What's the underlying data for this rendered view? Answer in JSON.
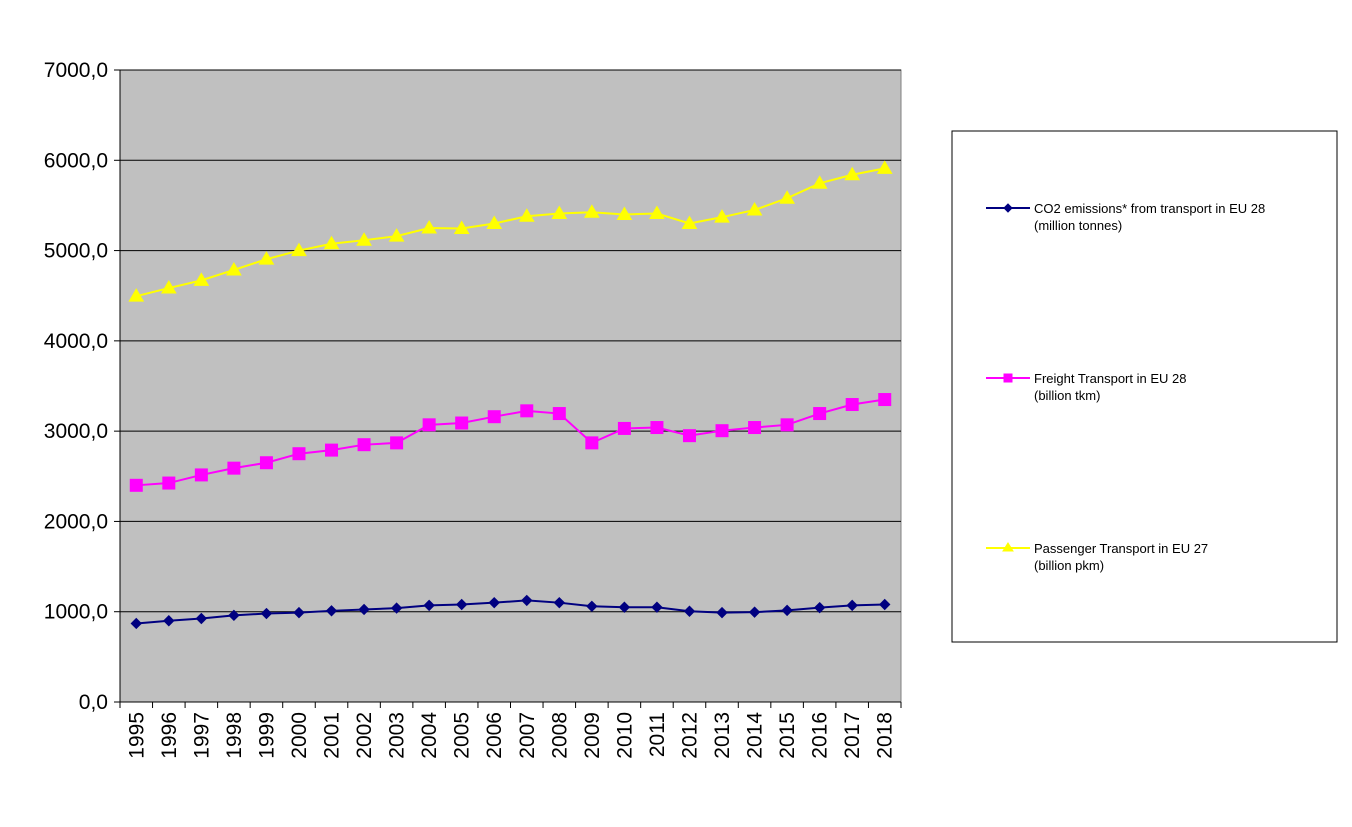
{
  "chart_data": {
    "type": "line",
    "title": "",
    "xlabel": "",
    "ylabel": "",
    "ylim": [
      0,
      7000
    ],
    "yticks": [
      "0,0",
      "1000,0",
      "2000,0",
      "3000,0",
      "4000,0",
      "5000,0",
      "6000,0",
      "7000,0"
    ],
    "categories": [
      "1995",
      "1996",
      "1997",
      "1998",
      "1999",
      "2000",
      "2001",
      "2002",
      "2003",
      "2004",
      "2005",
      "2006",
      "2007",
      "2008",
      "2009",
      "2010",
      "2011",
      "2012",
      "2013",
      "2014",
      "2015",
      "2016",
      "2017",
      "2018"
    ],
    "plot_background": "#C0C0C0",
    "grid": true,
    "legend_position": "right",
    "series": [
      {
        "name": "CO2 emissions* from transport in EU 28",
        "name_line2": "(million tonnes)",
        "color": "#000080",
        "marker": "diamond",
        "values": [
          870,
          900,
          925,
          960,
          980,
          990,
          1010,
          1025,
          1040,
          1070,
          1080,
          1100,
          1125,
          1100,
          1060,
          1050,
          1050,
          1005,
          990,
          995,
          1015,
          1045,
          1070,
          1080
        ]
      },
      {
        "name": "Freight Transport in EU 28",
        "name_line2": "(billion tkm)",
        "color": "#FF00FF",
        "marker": "square",
        "values": [
          2400,
          2425,
          2515,
          2590,
          2650,
          2750,
          2790,
          2850,
          2870,
          3070,
          3090,
          3160,
          3225,
          3195,
          2870,
          3030,
          3040,
          2950,
          3005,
          3040,
          3070,
          3195,
          3295,
          3350
        ]
      },
      {
        "name": "Passenger Transport in EU 27",
        "name_line2": "(billion pkm)",
        "color": "#FFFF00",
        "marker": "triangle",
        "values": [
          4495,
          4585,
          4670,
          4785,
          4905,
          5000,
          5075,
          5115,
          5160,
          5250,
          5245,
          5300,
          5380,
          5410,
          5425,
          5400,
          5410,
          5300,
          5370,
          5450,
          5580,
          5745,
          5840,
          5910
        ]
      }
    ]
  }
}
